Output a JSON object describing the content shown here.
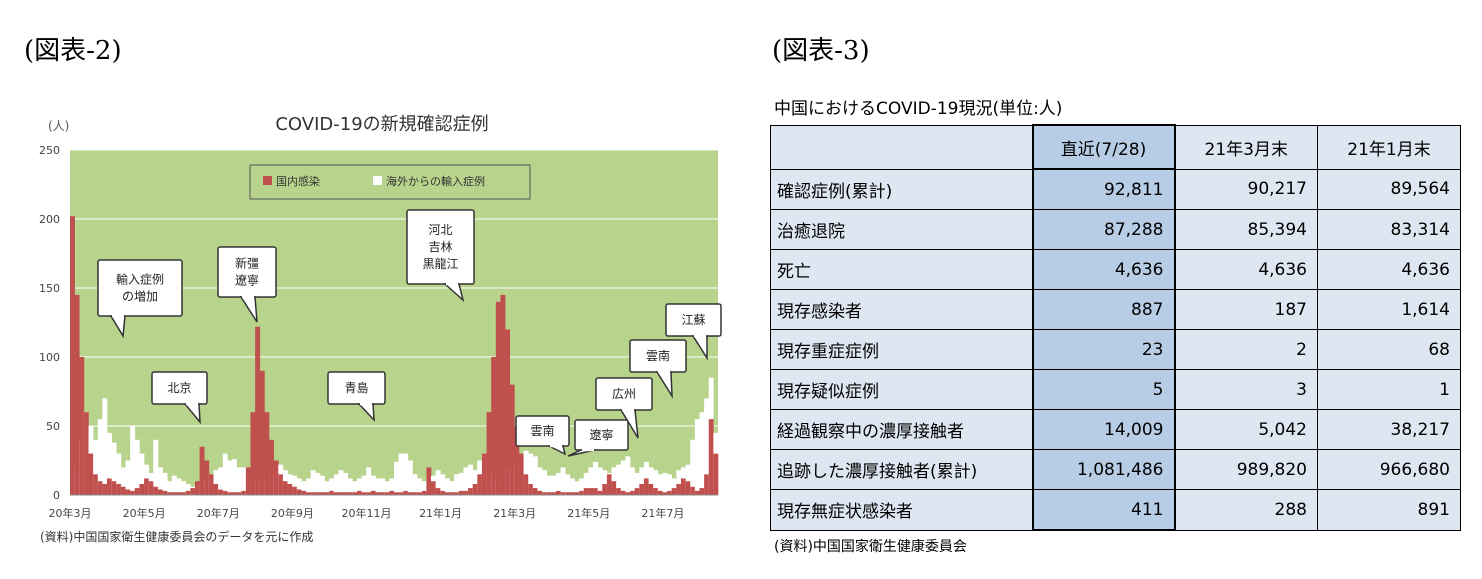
{
  "figure2": {
    "label": "(図表-2)"
  },
  "figure3": {
    "label": "(図表-3)"
  },
  "chart_data": {
    "type": "bar",
    "title": "COVID-19の新規確認症例",
    "y_unit": "(人)",
    "ylim": [
      0,
      250
    ],
    "yticks": [
      0,
      50,
      100,
      150,
      200,
      250
    ],
    "x_tick_labels": [
      "20年3月",
      "20年5月",
      "20年7月",
      "20年9月",
      "20年11月",
      "21年1月",
      "21年3月",
      "21年5月",
      "21年7月"
    ],
    "grid": true,
    "legend_position": "top-center",
    "colors": {
      "plot_bg": "#b8d38c",
      "domestic": "#c0504d",
      "imported": "#ffffff"
    },
    "series": [
      {
        "name": "国内感染",
        "key": "domestic",
        "values": [
          202,
          145,
          100,
          60,
          30,
          15,
          10,
          8,
          12,
          10,
          8,
          6,
          4,
          3,
          5,
          8,
          12,
          10,
          6,
          4,
          3,
          2,
          2,
          2,
          2,
          3,
          5,
          10,
          35,
          25,
          15,
          8,
          4,
          3,
          2,
          2,
          2,
          3,
          20,
          60,
          122,
          90,
          60,
          40,
          25,
          15,
          10,
          8,
          6,
          4,
          3,
          2,
          2,
          2,
          2,
          2,
          3,
          2,
          2,
          2,
          2,
          2,
          3,
          2,
          2,
          3,
          2,
          2,
          2,
          3,
          2,
          2,
          3,
          2,
          2,
          2,
          3,
          20,
          10,
          5,
          3,
          2,
          2,
          2,
          3,
          3,
          5,
          8,
          15,
          30,
          60,
          100,
          140,
          145,
          120,
          80,
          50,
          30,
          15,
          8,
          5,
          3,
          2,
          2,
          2,
          3,
          2,
          2,
          2,
          2,
          3,
          5,
          5,
          5,
          3,
          8,
          15,
          10,
          5,
          3,
          2,
          3,
          5,
          8,
          12,
          8,
          5,
          3,
          2,
          3,
          5,
          8,
          12,
          10,
          6,
          3,
          5,
          15,
          55,
          30
        ]
      },
      {
        "name": "海外からの輸入症例",
        "key": "imported",
        "values": [
          10,
          20,
          40,
          60,
          50,
          40,
          55,
          70,
          45,
          38,
          30,
          20,
          25,
          50,
          40,
          30,
          22,
          16,
          40,
          20,
          16,
          10,
          14,
          12,
          10,
          8,
          6,
          5,
          8,
          12,
          14,
          18,
          20,
          30,
          25,
          26,
          20,
          20,
          15,
          14,
          12,
          10,
          14,
          15,
          15,
          22,
          18,
          15,
          14,
          12,
          10,
          12,
          18,
          16,
          14,
          10,
          12,
          15,
          18,
          16,
          12,
          10,
          12,
          14,
          20,
          14,
          12,
          12,
          10,
          12,
          24,
          30,
          30,
          25,
          15,
          12,
          10,
          12,
          14,
          18,
          15,
          12,
          10,
          15,
          16,
          20,
          22,
          18,
          25,
          30,
          20,
          18,
          12,
          15,
          20,
          18,
          22,
          30,
          32,
          30,
          28,
          20,
          18,
          14,
          14,
          16,
          20,
          15,
          12,
          10,
          12,
          16,
          20,
          24,
          20,
          18,
          16,
          20,
          22,
          25,
          28,
          20,
          16,
          20,
          24,
          20,
          18,
          15,
          16,
          15,
          12,
          18,
          20,
          22,
          40,
          55,
          60,
          70,
          85,
          45
        ]
      }
    ],
    "callouts": [
      {
        "text": "輸入症例の増加"
      },
      {
        "text": "北京"
      },
      {
        "text": "新彊遼寧"
      },
      {
        "text": "青島"
      },
      {
        "text": "河北吉林黒龍江"
      },
      {
        "text": "雲南"
      },
      {
        "text": "遼寧"
      },
      {
        "text": "広州"
      },
      {
        "text": "雲南"
      },
      {
        "text": "江蘇"
      }
    ],
    "source": "(資料)中国国家衛生健康委員会のデータを元に作成"
  },
  "table": {
    "title": "中国におけるCOVID-19現況(単位:人)",
    "columns": [
      "",
      "直近(7/28)",
      "21年3月末",
      "21年1月末"
    ],
    "rows": [
      {
        "label": "確認症例(累計)",
        "values": [
          "92,811",
          "90,217",
          "89,564"
        ]
      },
      {
        "label": "治癒退院",
        "values": [
          "87,288",
          "85,394",
          "83,314"
        ]
      },
      {
        "label": "死亡",
        "values": [
          "4,636",
          "4,636",
          "4,636"
        ]
      },
      {
        "label": "現存感染者",
        "values": [
          "887",
          "187",
          "1,614"
        ]
      },
      {
        "label": "現存重症症例",
        "values": [
          "23",
          "2",
          "68"
        ]
      },
      {
        "label": "現存疑似症例",
        "values": [
          "5",
          "3",
          "1"
        ]
      },
      {
        "label": "経過観察中の濃厚接触者",
        "values": [
          "14,009",
          "5,042",
          "38,217"
        ]
      },
      {
        "label": "追跡した濃厚接触者(累計)",
        "values": [
          "1,081,486",
          "989,820",
          "966,680"
        ]
      },
      {
        "label": "現存無症状感染者",
        "values": [
          "411",
          "288",
          "891"
        ]
      }
    ],
    "source": "(資料)中国国家衛生健康委員会"
  }
}
